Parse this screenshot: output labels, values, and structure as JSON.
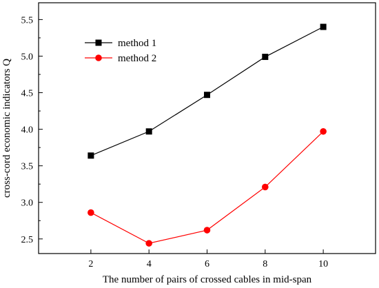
{
  "chart_data": {
    "type": "line",
    "title": "",
    "xlabel": "The number of pairs of crossed cables in mid-span",
    "ylabel": "cross-cord economic indicators Q",
    "x": [
      2,
      4,
      6,
      8,
      10
    ],
    "xticks": [
      "2",
      "4",
      "6",
      "8",
      "10"
    ],
    "yticks": [
      "2.5",
      "3.0",
      "3.5",
      "4.0",
      "4.5",
      "5.0",
      "5.5"
    ],
    "xlim": [
      0.2,
      11.8
    ],
    "ylim": [
      2.3,
      5.73
    ],
    "grid": false,
    "legend_position": "top-left",
    "series": [
      {
        "name": "method 1",
        "color": "#000000",
        "marker": "square",
        "values": [
          3.64,
          3.97,
          4.47,
          4.99,
          5.4
        ]
      },
      {
        "name": "method 2",
        "color": "#ff0000",
        "marker": "circle",
        "values": [
          2.86,
          2.44,
          2.62,
          3.21,
          3.97
        ]
      }
    ]
  }
}
